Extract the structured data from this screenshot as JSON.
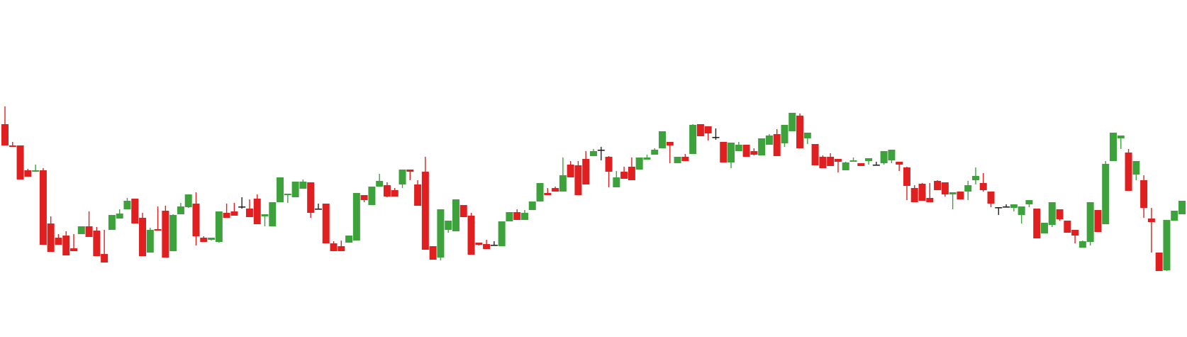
{
  "chart_data": {
    "type": "candlestick",
    "grid": false,
    "legend": "none",
    "colors": {
      "up": "#3da23b",
      "down": "#e02020",
      "doji": "#222222",
      "background": "#ffffff"
    },
    "ylim": [
      0,
      475
    ],
    "ohlc": [
      [
        300,
        325,
        280,
        270
      ],
      [
        270,
        268,
        275,
        268
      ],
      [
        270,
        265,
        235,
        222
      ],
      [
        235,
        237,
        233,
        226
      ],
      [
        233,
        243,
        235,
        235
      ],
      [
        235,
        238,
        165,
        130
      ],
      [
        160,
        170,
        137,
        120
      ],
      [
        140,
        145,
        143,
        130
      ],
      [
        143,
        149,
        125,
        115
      ],
      [
        125,
        131,
        145,
        121
      ],
      [
        145,
        147,
        156,
        156
      ],
      [
        156,
        177,
        146,
        141
      ],
      [
        150,
        155,
        117,
        114
      ],
      [
        117,
        135,
        151,
        105
      ],
      [
        151,
        171,
        172,
        172
      ],
      [
        167,
        172,
        180,
        174
      ],
      [
        180,
        196,
        195,
        192
      ],
      [
        195,
        195,
        168,
        160
      ],
      [
        168,
        175,
        119,
        114
      ],
      [
        119,
        125,
        154,
        151
      ],
      [
        152,
        184,
        178,
        150
      ],
      [
        178,
        185,
        121,
        112
      ],
      [
        121,
        124,
        173,
        172
      ],
      [
        173,
        189,
        188,
        184
      ],
      [
        183,
        182,
        188,
        201
      ],
      [
        188,
        204,
        129,
        142
      ],
      [
        140,
        139,
        142,
        134
      ],
      [
        137,
        136,
        136,
        140
      ],
      [
        134,
        133,
        175,
        177
      ],
      [
        175,
        188,
        177,
        168
      ],
      [
        177,
        189,
        184,
        171
      ],
      [
        184,
        197,
        181,
        183
      ],
      [
        181,
        184,
        194,
        169
      ],
      [
        195,
        201,
        165,
        159
      ],
      [
        170,
        167,
        156,
        173
      ],
      [
        156,
        188,
        190,
        190
      ],
      [
        190,
        195,
        197,
        225
      ],
      [
        200,
        189,
        189,
        202
      ],
      [
        197,
        197,
        209,
        219
      ],
      [
        209,
        216,
        222,
        219
      ],
      [
        218,
        208,
        168,
        175
      ],
      [
        181,
        184,
        188,
        181
      ],
      [
        188,
        179,
        132,
        132
      ],
      [
        132,
        135,
        127,
        121
      ],
      [
        128,
        125,
        136,
        121
      ],
      [
        133,
        134,
        135,
        143
      ],
      [
        136,
        139,
        200,
        203
      ],
      [
        200,
        200,
        190,
        193
      ],
      [
        186,
        192,
        212,
        212
      ],
      [
        212,
        230,
        221,
        220
      ],
      [
        214,
        218,
        197,
        198
      ],
      [
        207,
        198,
        210,
        198
      ],
      [
        215,
        213,
        210,
        236
      ],
      [
        236,
        226,
        221,
        233
      ],
      [
        215,
        221,
        205,
        185
      ],
      [
        233,
        254,
        128,
        123
      ],
      [
        128,
        126,
        112,
        109
      ],
      [
        112,
        108,
        136,
        180
      ],
      [
        151,
        159,
        147,
        164
      ],
      [
        149,
        159,
        175,
        194
      ],
      [
        186,
        186,
        170,
        169
      ],
      [
        171,
        175,
        134,
        116
      ],
      [
        133,
        129,
        130,
        130
      ],
      [
        131,
        137,
        126,
        124
      ],
      [
        130,
        135,
        129,
        130
      ],
      [
        128,
        137,
        160,
        163
      ],
      [
        163,
        175,
        176,
        176
      ],
      [
        176,
        180,
        165,
        165
      ],
      [
        165,
        175,
        179,
        175
      ],
      [
        179,
        180,
        187,
        191
      ],
      [
        191,
        201,
        203,
        217
      ],
      [
        203,
        210,
        210,
        200
      ],
      [
        210,
        209,
        212,
        205
      ],
      [
        205,
        207,
        253,
        228
      ],
      [
        243,
        248,
        241,
        225
      ],
      [
        242,
        248,
        247,
        200
      ],
      [
        251,
        262,
        252,
        215
      ],
      [
        255,
        264,
        265,
        262
      ],
      [
        264,
        268,
        249,
        263
      ],
      [
        254,
        255,
        211,
        233
      ],
      [
        211,
        234,
        233,
        225
      ],
      [
        233,
        233,
        240,
        223
      ],
      [
        240,
        253,
        236,
        221
      ],
      [
        236,
        236,
        252,
        253
      ],
      [
        250,
        252,
        257,
        253
      ],
      [
        257,
        264,
        266,
        264
      ],
      [
        266,
        268,
        275,
        290
      ],
      [
        275,
        275,
        245,
        270
      ],
      [
        245,
        246,
        251,
        254
      ],
      [
        254,
        257,
        258,
        248
      ],
      [
        258,
        271,
        300,
        299
      ],
      [
        300,
        297,
        297,
        283
      ],
      [
        297,
        287,
        277,
        287
      ],
      [
        282,
        294,
        278,
        281
      ],
      [
        275,
        275,
        248,
        246
      ],
      [
        246,
        238,
        262,
        274
      ],
      [
        262,
        275,
        271,
        271
      ],
      [
        271,
        256,
        259,
        254
      ],
      [
        262,
        266,
        256,
        257
      ],
      [
        256,
        262,
        271,
        280
      ],
      [
        271,
        282,
        286,
        284
      ],
      [
        286,
        293,
        273,
        255
      ],
      [
        273,
        268,
        290,
        299
      ],
      [
        290,
        312,
        312,
        316
      ],
      [
        312,
        315,
        280,
        266
      ],
      [
        280,
        279,
        272,
        288
      ],
      [
        272,
        271,
        256,
        242
      ],
      [
        254,
        256,
        252,
        238
      ],
      [
        254,
        259,
        251,
        241
      ],
      [
        251,
        249,
        232,
        247
      ],
      [
        235,
        244,
        247,
        246
      ],
      [
        247,
        253,
        248,
        249
      ],
      [
        245,
        243,
        244,
        241
      ],
      [
        248,
        246,
        243,
        252
      ],
      [
        243,
        247,
        247,
        242
      ],
      [
        245,
        243,
        249,
        262
      ],
      [
        249,
        245,
        247,
        264
      ],
      [
        247,
        247,
        234,
        243
      ],
      [
        239,
        240,
        193,
        213
      ],
      [
        210,
        214,
        201,
        190
      ],
      [
        216,
        217,
        196,
        192
      ],
      [
        196,
        192,
        217,
        190
      ],
      [
        220,
        221,
        218,
        207
      ],
      [
        218,
        217,
        198,
        201
      ],
      [
        201,
        197,
        180,
        204
      ],
      [
        205,
        203,
        196,
        194
      ],
      [
        205,
        193,
        220,
        214
      ],
      [
        221,
        239,
        215,
        227
      ],
      [
        217,
        231,
        205,
        207
      ],
      [
        205,
        202,
        183,
        188
      ],
      [
        182,
        172,
        183,
        183
      ],
      [
        184,
        185,
        187,
        184
      ],
      [
        182,
        177,
        180,
        187
      ],
      [
        172,
        160,
        183,
        184
      ],
      [
        187,
        183,
        193,
        193
      ],
      [
        181,
        178,
        142,
        139
      ],
      [
        146,
        159,
        149,
        161
      ],
      [
        158,
        155,
        180,
        190
      ],
      [
        180,
        179,
        164,
        166
      ],
      [
        164,
        155,
        151,
        147
      ],
      [
        151,
        141,
        132,
        143
      ],
      [
        126,
        129,
        136,
        135
      ],
      [
        134,
        129,
        179,
        190
      ],
      [
        179,
        175,
        171,
        148
      ],
      [
        159,
        164,
        248,
        244
      ],
      [
        248,
        248,
        280,
        288
      ],
      [
        280,
        270,
        265,
        284
      ],
      [
        260,
        265,
        229,
        206
      ],
      [
        229,
        225,
        221,
        248
      ],
      [
        221,
        228,
        168,
        182
      ],
      [
        167,
        182,
        119,
        162
      ],
      [
        119,
        117,
        94,
        93
      ],
      [
        94,
        93,
        162,
        165
      ],
      [
        164,
        167,
        173,
        178
      ],
      [
        173,
        185,
        189,
        192
      ]
    ]
  }
}
